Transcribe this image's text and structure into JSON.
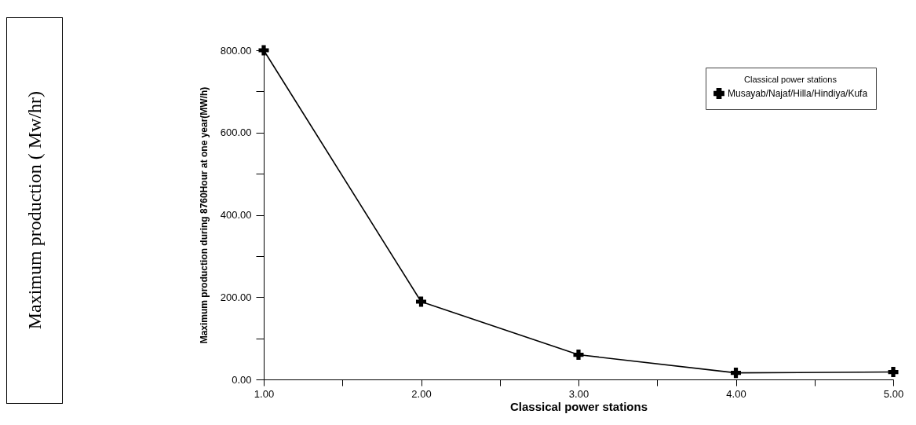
{
  "chart_data": {
    "type": "line",
    "xlabel": "Classical power stations",
    "ylabel": "Maximum production during 8760Hour at one year(MW/h)",
    "legend_title": "Classical power stations",
    "legend": "top right",
    "marker": "cross",
    "line_style": "solid",
    "grid": false,
    "x": [
      1,
      2,
      3,
      4,
      5
    ],
    "series": [
      {
        "name": "Musayab/Najaf/Hilla/Hindiya/Kufa",
        "color": "#000000",
        "values": [
          800,
          189,
          60,
          16,
          18
        ]
      }
    ],
    "xlim": [
      1,
      5
    ],
    "ylim": [
      0,
      800
    ],
    "xticks": [
      {
        "value": 1,
        "label": "1.00"
      },
      {
        "value": 1.5,
        "label": null
      },
      {
        "value": 2,
        "label": "2.00"
      },
      {
        "value": 2.5,
        "label": null
      },
      {
        "value": 3,
        "label": "3.00"
      },
      {
        "value": 3.5,
        "label": null
      },
      {
        "value": 4,
        "label": "4.00"
      },
      {
        "value": 4.5,
        "label": null
      },
      {
        "value": 5,
        "label": "5.00"
      }
    ],
    "yticks": [
      {
        "value": 0,
        "label": "0.00"
      },
      {
        "value": 100,
        "label": null
      },
      {
        "value": 200,
        "label": "200.00"
      },
      {
        "value": 300,
        "label": null
      },
      {
        "value": 400,
        "label": "400.00"
      },
      {
        "value": 500,
        "label": null
      },
      {
        "value": 600,
        "label": "600.00"
      },
      {
        "value": 700,
        "label": null
      },
      {
        "value": 800,
        "label": "800.00"
      }
    ],
    "annotations": [
      "Maximum production ( Mw/hr)"
    ]
  }
}
